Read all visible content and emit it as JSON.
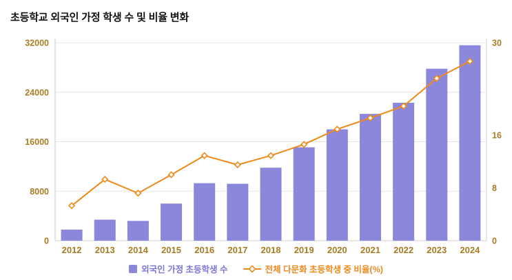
{
  "title": "초등학교 외국인 가정 학생 수 및 비율 변화",
  "legend": {
    "series1_label": "외국인 가정 초등학생 수",
    "series2_label": "전체 다문화 초등학생 중 비율(%)"
  },
  "colors": {
    "title": "#111111",
    "bar": "#8b87da",
    "line": "#f0891c",
    "legend_bar_text": "#7b75d9",
    "axis_label": "#a87b22",
    "grid": "#e4e4e4",
    "axis_line": "#cfcfcf"
  },
  "chart_data": {
    "type": "bar+line",
    "title": "초등학교 외국인 가정 학생 수 및 비율 변화",
    "categories": [
      "2012",
      "2013",
      "2014",
      "2015",
      "2016",
      "2017",
      "2018",
      "2019",
      "2020",
      "2021",
      "2022",
      "2023",
      "2024"
    ],
    "series": [
      {
        "name": "외국인 가정 초등학생 수",
        "type": "bar",
        "axis": "left",
        "values": [
          1800,
          3400,
          3200,
          6000,
          9300,
          9200,
          11800,
          15100,
          18000,
          20500,
          22300,
          27800,
          31600
        ]
      },
      {
        "name": "전체 다문화 초등학생 중 비율(%)",
        "type": "line",
        "axis": "right",
        "values": [
          5.3,
          9.3,
          7.2,
          10.0,
          12.9,
          11.5,
          12.9,
          14.6,
          16.9,
          18.6,
          20.4,
          24.6,
          27.2
        ]
      }
    ],
    "left_axis": {
      "min": 0,
      "max": 32000,
      "ticks": [
        0,
        8000,
        16000,
        24000,
        32000
      ]
    },
    "right_axis": {
      "min": 0,
      "max": 30,
      "ticks": [
        0,
        8,
        16,
        30
      ]
    },
    "grid": "horizontal",
    "legend_position": "bottom"
  }
}
